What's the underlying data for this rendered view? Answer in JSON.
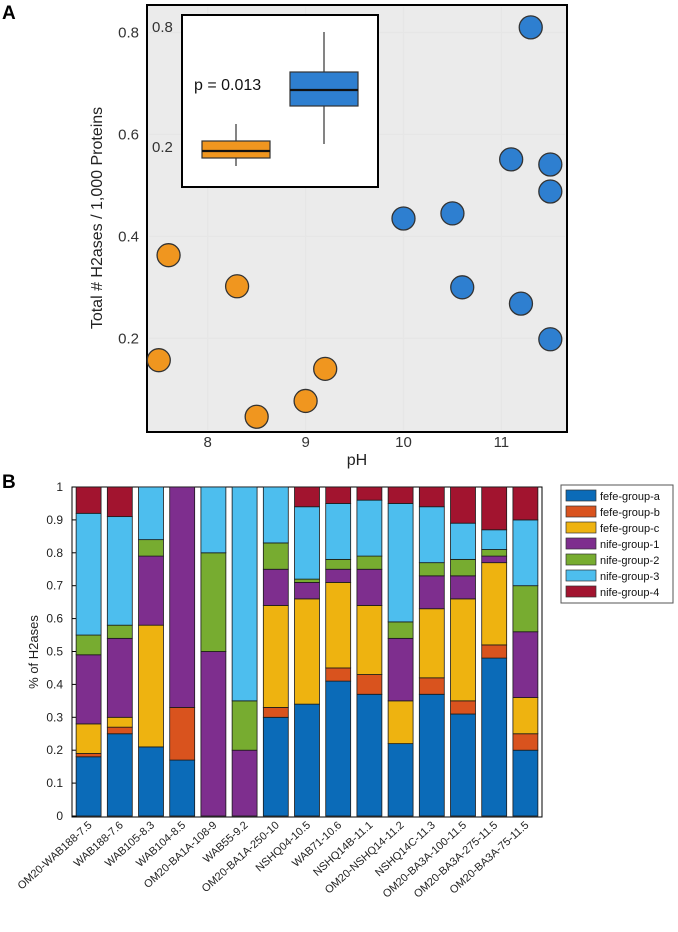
{
  "colors": {
    "blue": "#2e7fd0",
    "orange": "#f0961f",
    "dark_blue": "#0b6bb8",
    "red_orange": "#d9531e",
    "gold": "#eeb310",
    "purple": "#7e2e8e",
    "green": "#77ac30",
    "light_blue": "#4dbeee",
    "crimson": "#a2142f",
    "grid": "#e6e6e6",
    "panel_bg": "#ebebeb"
  },
  "chart_data": [
    {
      "panel": "A",
      "type": "scatter",
      "xlabel": "pH",
      "ylabel": "Total # H2ases / 1,000 Proteins",
      "xlim": [
        7.4,
        11.65
      ],
      "ylim": [
        0.02,
        0.85
      ],
      "xticks": [
        8,
        9,
        10,
        11
      ],
      "yticks": [
        0.2,
        0.4,
        0.6,
        0.8
      ],
      "xtick_labels": [
        "8",
        "9",
        "10",
        "11"
      ],
      "ytick_labels": [
        "0.2",
        "0.4",
        "0.6",
        "0.8"
      ],
      "series": [
        {
          "name": "orange",
          "points": [
            [
              7.5,
              0.157
            ],
            [
              7.6,
              0.363
            ],
            [
              8.3,
              0.302
            ],
            [
              8.5,
              0.046
            ],
            [
              9.0,
              0.077
            ],
            [
              9.2,
              0.14
            ]
          ]
        },
        {
          "name": "blue",
          "points": [
            [
              10.0,
              0.435
            ],
            [
              10.5,
              0.445
            ],
            [
              10.6,
              0.3
            ],
            [
              11.1,
              0.551
            ],
            [
              11.2,
              0.268
            ],
            [
              11.3,
              0.81
            ],
            [
              11.5,
              0.541
            ],
            [
              11.5,
              0.488
            ],
            [
              11.5,
              0.198
            ]
          ]
        }
      ],
      "inset": {
        "type": "boxplot",
        "annotation": "p = 0.013",
        "tick_labels": [
          "0.8",
          "0.2"
        ],
        "boxes": [
          {
            "name": "orange",
            "whisker_low": 0.14,
            "q1": 0.18,
            "median": 0.215,
            "q3": 0.265,
            "whisker_high": 0.35
          },
          {
            "name": "blue",
            "whisker_low": 0.25,
            "q1": 0.44,
            "median": 0.52,
            "q3": 0.61,
            "whisker_high": 0.81
          }
        ]
      }
    },
    {
      "panel": "B",
      "type": "bar",
      "stacked": true,
      "ylabel": "% of H2ases",
      "ylim": [
        0,
        1
      ],
      "yticks": [
        "0",
        "0.1",
        "0.2",
        "0.3",
        "0.4",
        "0.5",
        "0.6",
        "0.7",
        "0.8",
        "0.9",
        "1"
      ],
      "categories": [
        "OM20-WAB188-7.5",
        "WAB188-7.6",
        "WAB105-8.3",
        "WAB104-8.5",
        "OM20-BA1A-108-9",
        "WAB55-9.2",
        "OM20-BA1A-250-10",
        "NSHQ04-10.5",
        "WAB71-10.6",
        "NSHQ14B-11.1",
        "OM20-NSHQ14-11.2",
        "NSHQ14C-11.3",
        "OM20-BA3A-100-11.5",
        "OM20-BA3A-275-11.5",
        "OM20-BA3A-75-11.5"
      ],
      "series": [
        {
          "name": "fefe-group-a",
          "values": [
            0.18,
            0.25,
            0.21,
            0.17,
            0,
            0,
            0.3,
            0.34,
            0.41,
            0.37,
            0.22,
            0.37,
            0.31,
            0.48,
            0.2
          ]
        },
        {
          "name": "fefe-group-b",
          "values": [
            0.01,
            0.02,
            0,
            0.16,
            0,
            0,
            0.03,
            0,
            0.04,
            0.06,
            0,
            0.05,
            0.04,
            0.04,
            0.05
          ]
        },
        {
          "name": "fefe-group-c",
          "values": [
            0.09,
            0.03,
            0.37,
            0,
            0,
            0,
            0.31,
            0.32,
            0.26,
            0.21,
            0.13,
            0.21,
            0.31,
            0.25,
            0.11
          ]
        },
        {
          "name": "nife-group-1",
          "values": [
            0.21,
            0.24,
            0.21,
            0.67,
            0.5,
            0.2,
            0.11,
            0.05,
            0.04,
            0.11,
            0.19,
            0.1,
            0.07,
            0.02,
            0.2
          ]
        },
        {
          "name": "nife-group-2",
          "values": [
            0.06,
            0.04,
            0.05,
            0,
            0.3,
            0.15,
            0.08,
            0.01,
            0.03,
            0.04,
            0.05,
            0.04,
            0.05,
            0.02,
            0.14
          ]
        },
        {
          "name": "nife-group-3",
          "values": [
            0.37,
            0.33,
            0.16,
            0,
            0.2,
            0.65,
            0.17,
            0.22,
            0.17,
            0.17,
            0.36,
            0.17,
            0.11,
            0.06,
            0.2
          ]
        },
        {
          "name": "nife-group-4",
          "values": [
            0.08,
            0.09,
            0,
            0,
            0,
            0,
            0,
            0.06,
            0.05,
            0.04,
            0.05,
            0.06,
            0.11,
            0.13,
            0.1
          ]
        }
      ],
      "legend_placement": "top-right"
    }
  ],
  "figure": {
    "panel_a_label": "A",
    "panel_b_label": "B"
  }
}
